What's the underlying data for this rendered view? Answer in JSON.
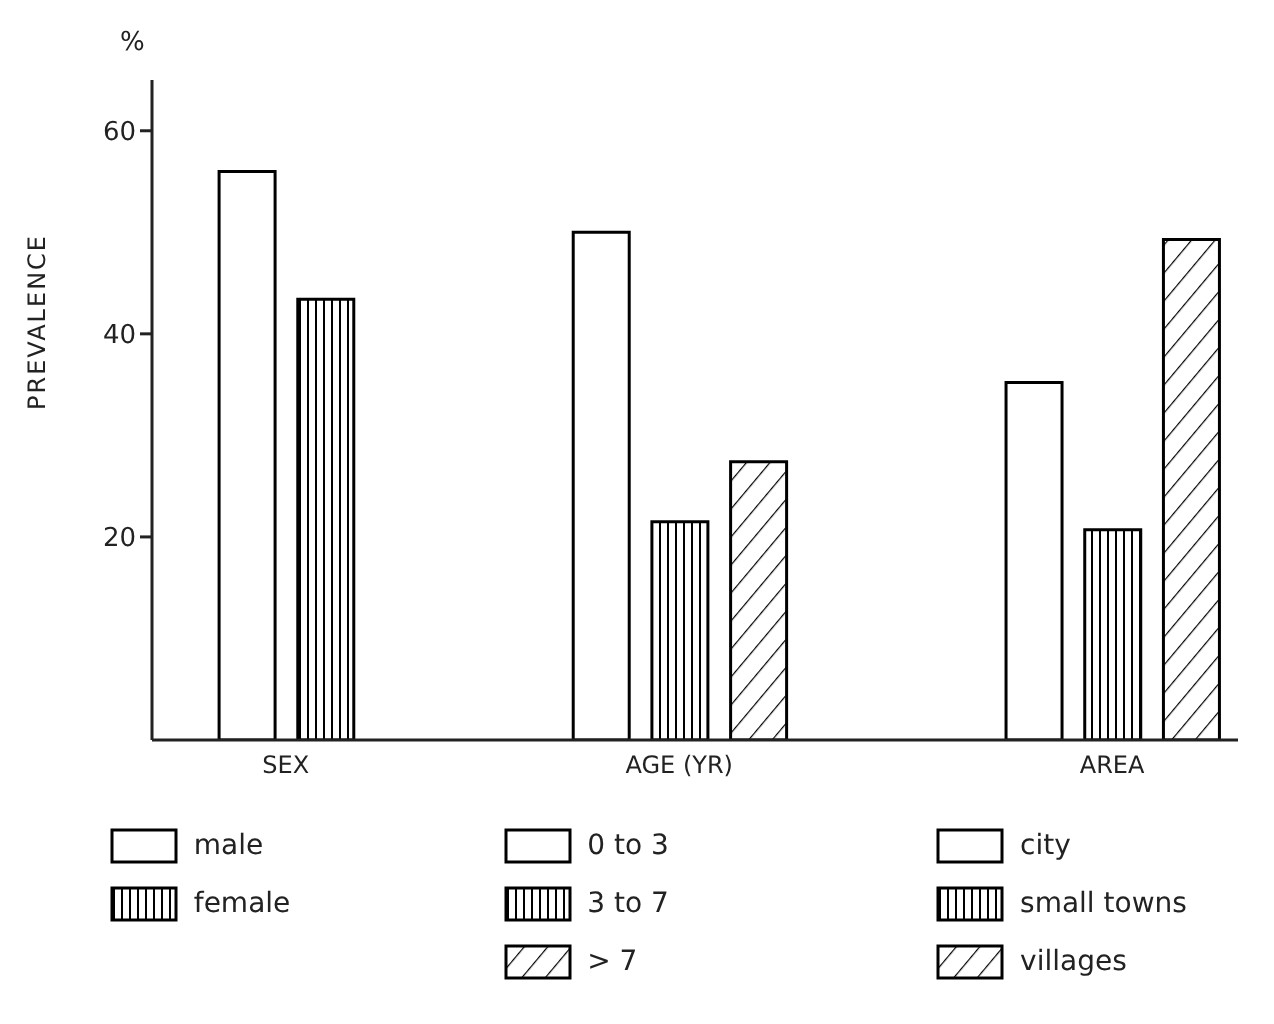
{
  "chart_data": {
    "type": "bar",
    "ylabel": "PREVALENCE",
    "annotations": [
      "%"
    ],
    "categories": [
      "SEX",
      "AGE (YR)",
      "AREA"
    ],
    "series": [
      {
        "name": "male",
        "color": "#000000",
        "values": [
          56,
          null,
          null
        ]
      },
      {
        "name": "female",
        "color": "#000000",
        "values": [
          43.4,
          null,
          null
        ]
      },
      {
        "name": "0 to 3",
        "color": "#000000",
        "values": [
          null,
          50,
          null
        ]
      },
      {
        "name": "3 to 7",
        "color": "#000000",
        "values": [
          null,
          21.5,
          null
        ]
      },
      {
        "name": "> 7",
        "color": "#000000",
        "values": [
          null,
          27.4,
          null
        ]
      },
      {
        "name": "city",
        "color": "#000000",
        "values": [
          null,
          null,
          35.2
        ]
      },
      {
        "name": "small towns",
        "color": "#000000",
        "values": [
          null,
          null,
          20.7
        ]
      },
      {
        "name": "villages",
        "color": "#000000",
        "values": [
          null,
          null,
          49.3
        ]
      }
    ],
    "ylim": [
      0,
      65
    ],
    "yticks": [
      20,
      40,
      60
    ],
    "grid": false,
    "legend": "bottom"
  }
}
